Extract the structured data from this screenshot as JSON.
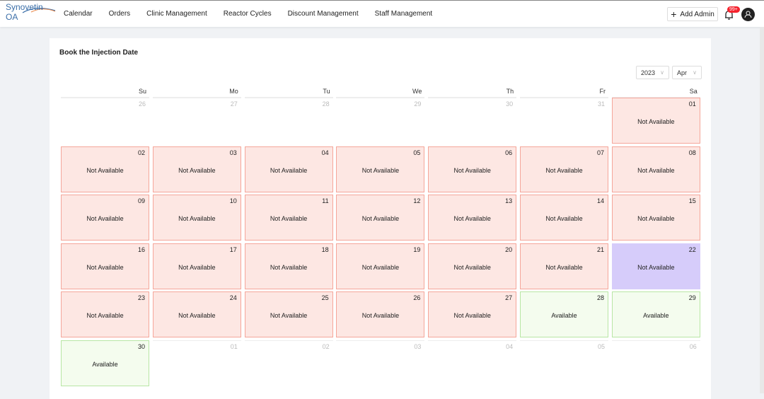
{
  "brand": "Synovetin OA",
  "nav": [
    "Calendar",
    "Orders",
    "Clinic Management",
    "Reactor Cycles",
    "Discount Management",
    "Staff Management"
  ],
  "add_admin": "Add Admin",
  "notif_badge": "99+",
  "card_title": "Book the Injection Date",
  "year": "2023",
  "month": "Apr",
  "weekdays": [
    "Su",
    "Mo",
    "Tu",
    "We",
    "Th",
    "Fr",
    "Sa"
  ],
  "status_labels": {
    "na": "Not Available",
    "av": "Available",
    "pk": "Not Available"
  },
  "colors": {
    "not_available": "#fde7e3",
    "available": "#f4fcee",
    "selected": "#d6ccfa",
    "brand": "#3a6ea8",
    "badge": "#f5222d"
  },
  "weeks": [
    [
      [
        "26",
        ""
      ],
      [
        "27",
        ""
      ],
      [
        "28",
        ""
      ],
      [
        "29",
        ""
      ],
      [
        "30",
        ""
      ],
      [
        "31",
        ""
      ],
      [
        "01",
        "na"
      ]
    ],
    [
      [
        "02",
        "na"
      ],
      [
        "03",
        "na"
      ],
      [
        "04",
        "na"
      ],
      [
        "05",
        "na"
      ],
      [
        "06",
        "na"
      ],
      [
        "07",
        "na"
      ],
      [
        "08",
        "na"
      ]
    ],
    [
      [
        "09",
        "na"
      ],
      [
        "10",
        "na"
      ],
      [
        "11",
        "na"
      ],
      [
        "12",
        "na"
      ],
      [
        "13",
        "na"
      ],
      [
        "14",
        "na"
      ],
      [
        "15",
        "na"
      ]
    ],
    [
      [
        "16",
        "na"
      ],
      [
        "17",
        "na"
      ],
      [
        "18",
        "na"
      ],
      [
        "19",
        "na"
      ],
      [
        "20",
        "na"
      ],
      [
        "21",
        "na"
      ],
      [
        "22",
        "pk"
      ]
    ],
    [
      [
        "23",
        "na"
      ],
      [
        "24",
        "na"
      ],
      [
        "25",
        "na"
      ],
      [
        "26",
        "na"
      ],
      [
        "27",
        "na"
      ],
      [
        "28",
        "av"
      ],
      [
        "29",
        "av"
      ]
    ],
    [
      [
        "30",
        "av"
      ],
      [
        "01",
        ""
      ],
      [
        "02",
        ""
      ],
      [
        "03",
        ""
      ],
      [
        "04",
        ""
      ],
      [
        "05",
        ""
      ],
      [
        "06",
        ""
      ]
    ]
  ]
}
